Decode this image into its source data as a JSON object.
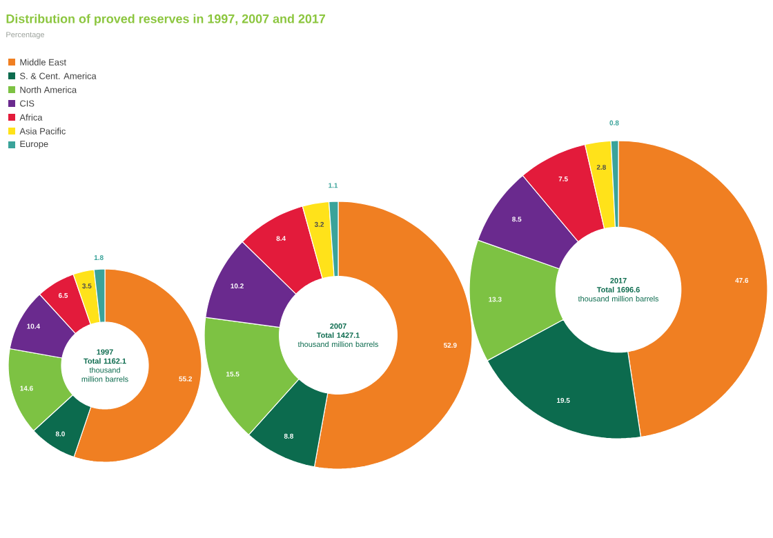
{
  "chart_data": [
    {
      "type": "donut",
      "title": "Distribution of proved reserves in 1997, 2007 and 2017",
      "subtitle": "Percentage",
      "legend": "top left",
      "data_labels": true,
      "categories": [
        "Middle East",
        "S. & Cent. America",
        "North America",
        "CIS",
        "Africa",
        "Asia Pacific",
        "Europe"
      ],
      "values": [
        55.2,
        8.0,
        14.6,
        10.4,
        6.5,
        3.5,
        1.8
      ],
      "value_labels": [
        "55.2",
        "8.0",
        "14.6",
        "10.4",
        "6.5",
        "3.5",
        "1.8"
      ],
      "colors": [
        "#f07f22",
        "#0c6b4e",
        "#7dc243",
        "#6a2a8e",
        "#e31b3b",
        "#ffe21a",
        "#3aa39a"
      ],
      "annotations": [
        "1997",
        "Total 1162.1",
        "thousand million barrels"
      ]
    },
    {
      "type": "donut",
      "data_labels": true,
      "categories": [
        null,
        null,
        null,
        null,
        null,
        null,
        null
      ],
      "values": [
        52.9,
        8.8,
        15.5,
        10.2,
        8.4,
        3.2,
        1.1
      ],
      "value_labels": [
        "52.9",
        "8.8",
        "15.5",
        "10.2",
        "8.4",
        "3.2",
        "1.1"
      ],
      "colors": [
        "#f07f22",
        "#0c6b4e",
        "#7dc243",
        "#6a2a8e",
        "#e31b3b",
        "#ffe21a",
        "#3aa39a"
      ],
      "annotations": [
        "2007",
        "Total 1427.1",
        "thousand million barrels"
      ]
    },
    {
      "type": "donut",
      "data_labels": true,
      "categories": [
        null,
        null,
        null,
        null,
        null,
        null,
        null
      ],
      "values": [
        47.6,
        19.5,
        13.3,
        8.5,
        7.5,
        2.8,
        0.8
      ],
      "value_labels": [
        "47.6",
        "19.5",
        "13.3",
        "8.5",
        "7.5",
        "2.8",
        "0.8"
      ],
      "colors": [
        "#f07f22",
        "#0c6b4e",
        "#7dc243",
        "#6a2a8e",
        "#e31b3b",
        "#ffe21a",
        "#3aa39a"
      ],
      "annotations": [
        "2017",
        "Total 1696.6",
        "thousand million barrels"
      ]
    }
  ]
}
